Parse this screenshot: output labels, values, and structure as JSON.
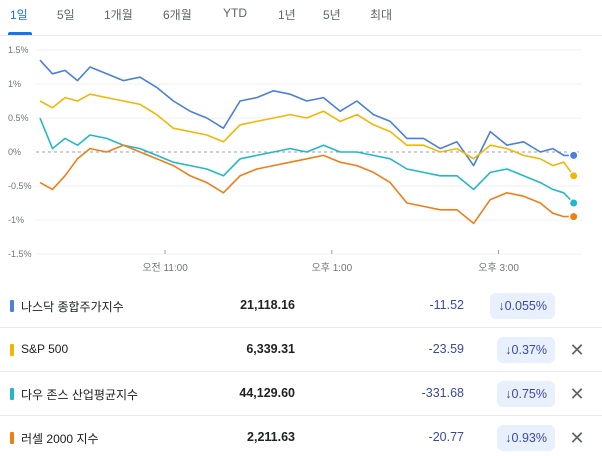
{
  "tabs": [
    {
      "label": "1일",
      "active": true
    },
    {
      "label": "5일",
      "active": false
    },
    {
      "label": "1개월",
      "active": false
    },
    {
      "label": "6개월",
      "active": false
    },
    {
      "label": "YTD",
      "active": false
    },
    {
      "label": "1년",
      "active": false
    },
    {
      "label": "5년",
      "active": false
    },
    {
      "label": "최대",
      "active": false
    }
  ],
  "chart_data": {
    "type": "line",
    "y_tick_labels": [
      "1.5%",
      "1%",
      "0.5%",
      "0%",
      "-0.5%",
      "-1%",
      "-1.5%"
    ],
    "y_tick_values": [
      1.5,
      1.0,
      0.5,
      0.0,
      -0.5,
      -1.0,
      -1.5
    ],
    "ylim": [
      -1.5,
      1.5
    ],
    "x_tick_labels": [
      "오전 11:00",
      "오후 1:00",
      "오후 3:00"
    ],
    "x_tick_values": [
      11,
      13,
      15
    ],
    "xlim": [
      9.5,
      16.0
    ],
    "grid": "horizontal",
    "baseline": 0,
    "series": [
      {
        "name": "나스닥 종합주가지수",
        "color": "#4a7fdc",
        "x": [
          9.5,
          9.65,
          9.8,
          9.95,
          10.1,
          10.3,
          10.5,
          10.7,
          10.9,
          11.1,
          11.3,
          11.5,
          11.7,
          11.9,
          12.1,
          12.3,
          12.5,
          12.7,
          12.9,
          13.1,
          13.3,
          13.5,
          13.7,
          13.9,
          14.1,
          14.3,
          14.5,
          14.7,
          14.9,
          15.1,
          15.3,
          15.5,
          15.65,
          15.78,
          15.9
        ],
        "y": [
          1.35,
          1.15,
          1.2,
          1.05,
          1.25,
          1.15,
          1.05,
          1.1,
          0.95,
          0.75,
          0.6,
          0.5,
          0.35,
          0.75,
          0.8,
          0.9,
          0.85,
          0.75,
          0.8,
          0.6,
          0.75,
          0.55,
          0.45,
          0.2,
          0.2,
          0.05,
          0.15,
          -0.2,
          0.3,
          0.1,
          0.15,
          0.0,
          0.05,
          -0.05,
          -0.05
        ]
      },
      {
        "name": "S&P 500",
        "color": "#f2b705",
        "x": [
          9.5,
          9.65,
          9.8,
          9.95,
          10.1,
          10.3,
          10.5,
          10.7,
          10.9,
          11.1,
          11.3,
          11.5,
          11.7,
          11.9,
          12.1,
          12.3,
          12.5,
          12.7,
          12.9,
          13.1,
          13.3,
          13.5,
          13.7,
          13.9,
          14.1,
          14.3,
          14.5,
          14.7,
          14.9,
          15.1,
          15.3,
          15.5,
          15.65,
          15.78,
          15.9
        ],
        "y": [
          0.75,
          0.65,
          0.8,
          0.75,
          0.85,
          0.8,
          0.75,
          0.7,
          0.55,
          0.35,
          0.3,
          0.25,
          0.15,
          0.4,
          0.45,
          0.5,
          0.55,
          0.5,
          0.6,
          0.45,
          0.55,
          0.4,
          0.3,
          0.1,
          0.1,
          0.0,
          0.05,
          -0.1,
          0.1,
          0.05,
          -0.05,
          -0.1,
          -0.2,
          -0.15,
          -0.35
        ]
      },
      {
        "name": "다우 존스 산업평균지수",
        "color": "#23b8c9",
        "x": [
          9.5,
          9.65,
          9.8,
          9.95,
          10.1,
          10.3,
          10.5,
          10.7,
          10.9,
          11.1,
          11.3,
          11.5,
          11.7,
          11.9,
          12.1,
          12.3,
          12.5,
          12.7,
          12.9,
          13.1,
          13.3,
          13.5,
          13.7,
          13.9,
          14.1,
          14.3,
          14.5,
          14.7,
          14.9,
          15.1,
          15.3,
          15.5,
          15.65,
          15.78,
          15.9
        ],
        "y": [
          0.5,
          0.05,
          0.2,
          0.1,
          0.25,
          0.2,
          0.1,
          0.05,
          -0.05,
          -0.15,
          -0.2,
          -0.25,
          -0.35,
          -0.1,
          -0.05,
          0.0,
          0.05,
          0.0,
          0.1,
          0.0,
          0.0,
          -0.05,
          -0.1,
          -0.25,
          -0.3,
          -0.35,
          -0.35,
          -0.55,
          -0.3,
          -0.25,
          -0.35,
          -0.45,
          -0.55,
          -0.6,
          -0.75
        ]
      },
      {
        "name": "러셀 2000 지수",
        "color": "#f07e18",
        "x": [
          9.5,
          9.65,
          9.8,
          9.95,
          10.1,
          10.3,
          10.5,
          10.7,
          10.9,
          11.1,
          11.3,
          11.5,
          11.7,
          11.9,
          12.1,
          12.3,
          12.5,
          12.7,
          12.9,
          13.1,
          13.3,
          13.5,
          13.7,
          13.9,
          14.1,
          14.3,
          14.5,
          14.7,
          14.9,
          15.1,
          15.3,
          15.5,
          15.65,
          15.78,
          15.9
        ],
        "y": [
          -0.45,
          -0.55,
          -0.35,
          -0.1,
          0.05,
          0.0,
          0.1,
          0.0,
          -0.1,
          -0.2,
          -0.35,
          -0.45,
          -0.6,
          -0.35,
          -0.25,
          -0.2,
          -0.15,
          -0.1,
          -0.05,
          -0.15,
          -0.2,
          -0.3,
          -0.45,
          -0.75,
          -0.8,
          -0.85,
          -0.85,
          -1.05,
          -0.7,
          -0.6,
          -0.65,
          -0.75,
          -0.9,
          -0.95,
          -0.95
        ]
      }
    ]
  },
  "rows": [
    {
      "name": "나스닥 종합주가지수",
      "color": "#4a7fdc",
      "value": "21,118.16",
      "change": "-11.52",
      "percent": "↓0.055%",
      "closable": false
    },
    {
      "name": "S&P 500",
      "color": "#f2b705",
      "value": "6,339.31",
      "change": "-23.59",
      "percent": "↓0.37%",
      "closable": true
    },
    {
      "name": "다우 존스 산업평균지수",
      "color": "#23b8c9",
      "value": "44,129.60",
      "change": "-331.68",
      "percent": "↓0.75%",
      "closable": true
    },
    {
      "name": "러셀 2000 지수",
      "color": "#f07e18",
      "value": "2,211.63",
      "change": "-20.77",
      "percent": "↓0.93%",
      "closable": true
    }
  ],
  "close_glyph": "✕"
}
